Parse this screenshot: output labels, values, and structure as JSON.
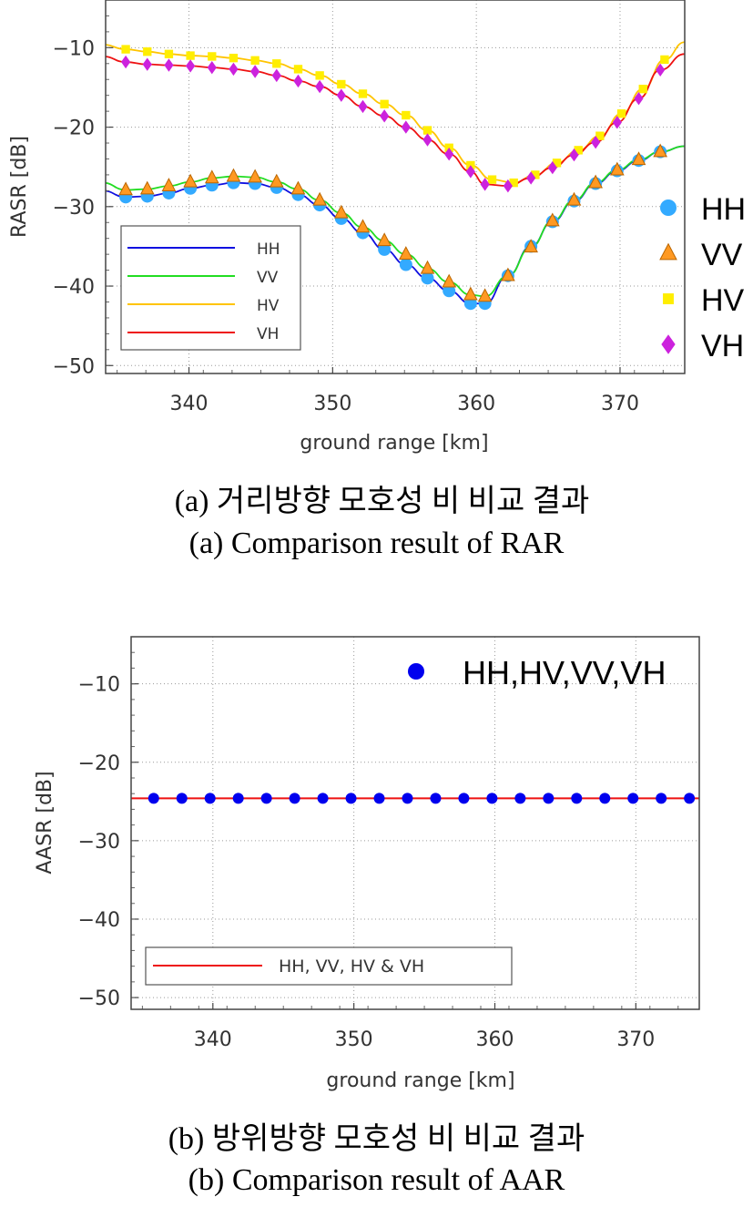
{
  "colors": {
    "HH": "#1010e0",
    "VV": "#22dd22",
    "HV": "#ffc400",
    "VH": "#ee1111",
    "HH_marker": "#33aaff",
    "VV_marker": "#ff9922",
    "HV_marker": "#ffee00",
    "VH_marker": "#cc22dd",
    "AAR_marker": "#0000ee",
    "AAR_line": "#ee1111"
  },
  "chart_data": [
    {
      "type": "line",
      "xlabel": "ground range [km]",
      "ylabel": "RASR [dB]",
      "xlim": [
        334.2,
        374.5
      ],
      "ylim": [
        -51,
        -4
      ],
      "xticks": [
        340,
        350,
        360,
        370
      ],
      "yticks": [
        -10,
        -20,
        -30,
        -40,
        -50
      ],
      "grid": true,
      "line_legend": {
        "placement": "lower-left",
        "entries": [
          "HH",
          "VV",
          "HV",
          "VH"
        ]
      },
      "marker_legend": {
        "placement": "right-outside",
        "entries": [
          "HH",
          "VV",
          "HV",
          "VH"
        ]
      },
      "series": [
        {
          "name": "HH",
          "marker": "circle",
          "x": [
            334,
            335.6,
            337.1,
            338.6,
            340.1,
            341.6,
            343.1,
            344.6,
            346.1,
            347.6,
            349.1,
            350.6,
            352.1,
            353.6,
            355.1,
            356.6,
            358.1,
            359.6,
            360.6,
            362.2,
            363.8,
            365.3,
            366.8,
            368.3,
            369.8,
            371.3,
            372.8,
            374.5
          ],
          "y": [
            -28.0,
            -28.8,
            -28.7,
            -28.3,
            -27.7,
            -27.3,
            -27.0,
            -27.1,
            -27.6,
            -28.5,
            -29.8,
            -31.5,
            -33.3,
            -35.4,
            -37.3,
            -39.0,
            -40.6,
            -42.2,
            -42.2,
            -38.7,
            -35.0,
            -31.9,
            -29.3,
            -27.1,
            -25.5,
            -24.2,
            -23.1,
            -22.4
          ]
        },
        {
          "name": "VV",
          "marker": "triangle",
          "x": [
            334,
            335.6,
            337.1,
            338.6,
            340.1,
            341.6,
            343.1,
            344.6,
            346.1,
            347.6,
            349.1,
            350.6,
            352.1,
            353.6,
            355.1,
            356.6,
            358.1,
            359.6,
            360.6,
            362.2,
            363.8,
            365.3,
            366.8,
            368.3,
            369.8,
            371.3,
            372.8,
            374.5
          ],
          "y": [
            -27.0,
            -27.9,
            -27.8,
            -27.4,
            -26.9,
            -26.4,
            -26.2,
            -26.3,
            -26.9,
            -27.8,
            -29.2,
            -30.8,
            -32.6,
            -34.3,
            -36.0,
            -37.8,
            -39.5,
            -41.1,
            -41.3,
            -38.7,
            -35.1,
            -31.8,
            -29.2,
            -27.0,
            -25.4,
            -24.1,
            -23.1,
            -22.4
          ]
        },
        {
          "name": "HV",
          "marker": "square",
          "x": [
            334,
            335.6,
            337.1,
            338.6,
            340.1,
            341.6,
            343.1,
            344.6,
            346.1,
            347.6,
            349.1,
            350.6,
            352.1,
            353.6,
            355.1,
            356.6,
            358.1,
            359.6,
            361.1,
            362.6,
            364.1,
            365.6,
            367.1,
            368.6,
            370.1,
            371.6,
            373.1,
            374.5
          ],
          "y": [
            -9.6,
            -10.2,
            -10.5,
            -10.8,
            -11.0,
            -11.1,
            -11.3,
            -11.6,
            -12.0,
            -12.7,
            -13.5,
            -14.6,
            -15.8,
            -17.1,
            -18.5,
            -20.4,
            -22.6,
            -24.8,
            -26.6,
            -27.0,
            -26.0,
            -24.5,
            -22.9,
            -21.1,
            -18.3,
            -15.2,
            -11.5,
            -9.3
          ]
        },
        {
          "name": "VH",
          "marker": "diamond",
          "x": [
            334,
            335.6,
            337.1,
            338.6,
            340.1,
            341.6,
            343.1,
            344.6,
            346.1,
            347.6,
            349.1,
            350.6,
            352.1,
            353.6,
            355.1,
            356.6,
            358.1,
            359.6,
            360.6,
            362.2,
            363.8,
            365.3,
            366.8,
            368.3,
            369.8,
            371.3,
            372.8,
            374.5
          ],
          "y": [
            -11.1,
            -11.8,
            -12.1,
            -12.2,
            -12.3,
            -12.5,
            -12.7,
            -13.0,
            -13.5,
            -14.2,
            -14.9,
            -16.0,
            -17.4,
            -18.6,
            -20.0,
            -21.6,
            -23.4,
            -25.6,
            -27.2,
            -27.4,
            -26.4,
            -25.1,
            -23.5,
            -21.9,
            -19.4,
            -16.4,
            -12.8,
            -10.8
          ]
        }
      ]
    },
    {
      "type": "line",
      "xlabel": "ground range [km]",
      "ylabel": "AASR [dB]",
      "xlim": [
        334.2,
        374.5
      ],
      "ylim": [
        -51.5,
        -4
      ],
      "xticks": [
        340,
        350,
        360,
        370
      ],
      "yticks": [
        -10,
        -20,
        -30,
        -40,
        -50
      ],
      "grid": true,
      "line_legend": {
        "placement": "lower-left",
        "entries": [
          "HH, VV, HV & VH"
        ]
      },
      "marker_legend": {
        "placement": "top-right",
        "entries": [
          "HH,HV,VV,VH"
        ]
      },
      "series": [
        {
          "name": "HH, VV, HV & VH",
          "marker": "circle",
          "x": [
            335.8,
            337.8,
            339.8,
            341.8,
            343.8,
            345.8,
            347.8,
            349.8,
            351.8,
            353.8,
            355.8,
            357.8,
            359.8,
            361.8,
            363.8,
            365.8,
            367.8,
            369.8,
            371.8,
            373.8
          ],
          "y": [
            -24.6,
            -24.6,
            -24.6,
            -24.6,
            -24.6,
            -24.6,
            -24.6,
            -24.6,
            -24.6,
            -24.6,
            -24.6,
            -24.6,
            -24.6,
            -24.6,
            -24.6,
            -24.6,
            -24.6,
            -24.6,
            -24.6,
            -24.6
          ],
          "line_y": -24.6
        }
      ]
    }
  ],
  "captions": {
    "a_korean": "(a) 거리방향 모호성 비 비교 결과",
    "a_english": "(a) Comparison result of RAR",
    "b_korean": "(b) 방위방향 모호성 비 비교 결과",
    "b_english": "(b) Comparison result of AAR"
  }
}
